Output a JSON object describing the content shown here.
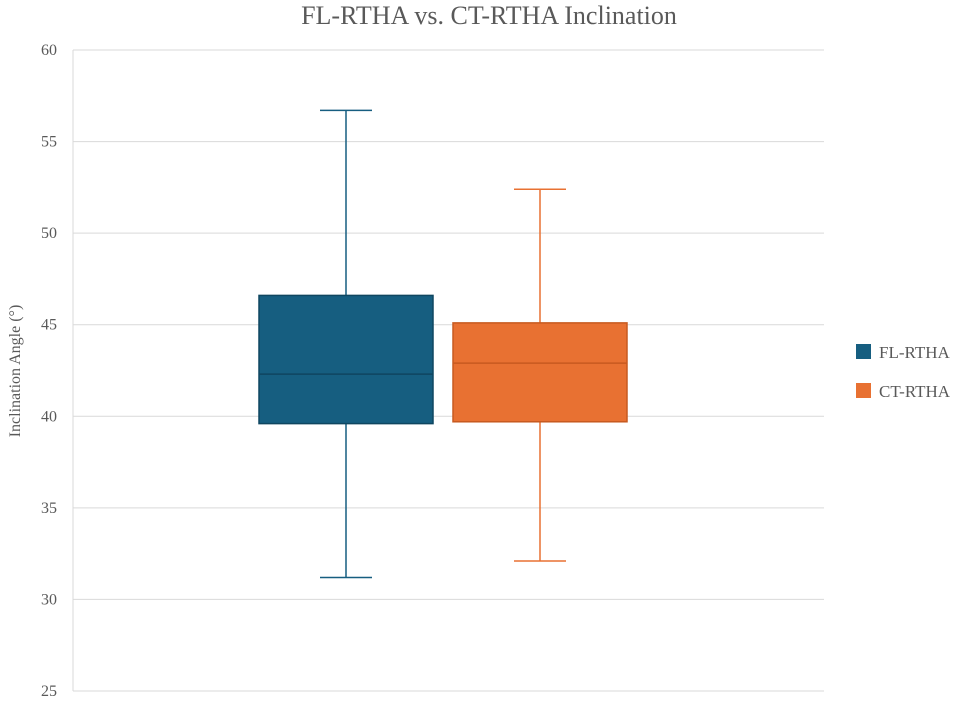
{
  "chart_data": {
    "type": "box",
    "title": "FL-RTHA vs. CT-RTHA Inclination",
    "xlabel": "",
    "ylabel": "Inclination Angle (°)",
    "ylim": [
      25,
      60
    ],
    "yticks": [
      25,
      30,
      35,
      40,
      45,
      50,
      55,
      60
    ],
    "grid": true,
    "legend_position": "right",
    "series": [
      {
        "name": "FL-RTHA",
        "color": "#165e80",
        "min": 31.2,
        "q1": 39.6,
        "median": 42.3,
        "q3": 46.6,
        "max": 56.7
      },
      {
        "name": "CT-RTHA",
        "color": "#e87132",
        "min": 32.1,
        "q1": 39.7,
        "median": 42.9,
        "q3": 45.1,
        "max": 52.4
      }
    ]
  }
}
